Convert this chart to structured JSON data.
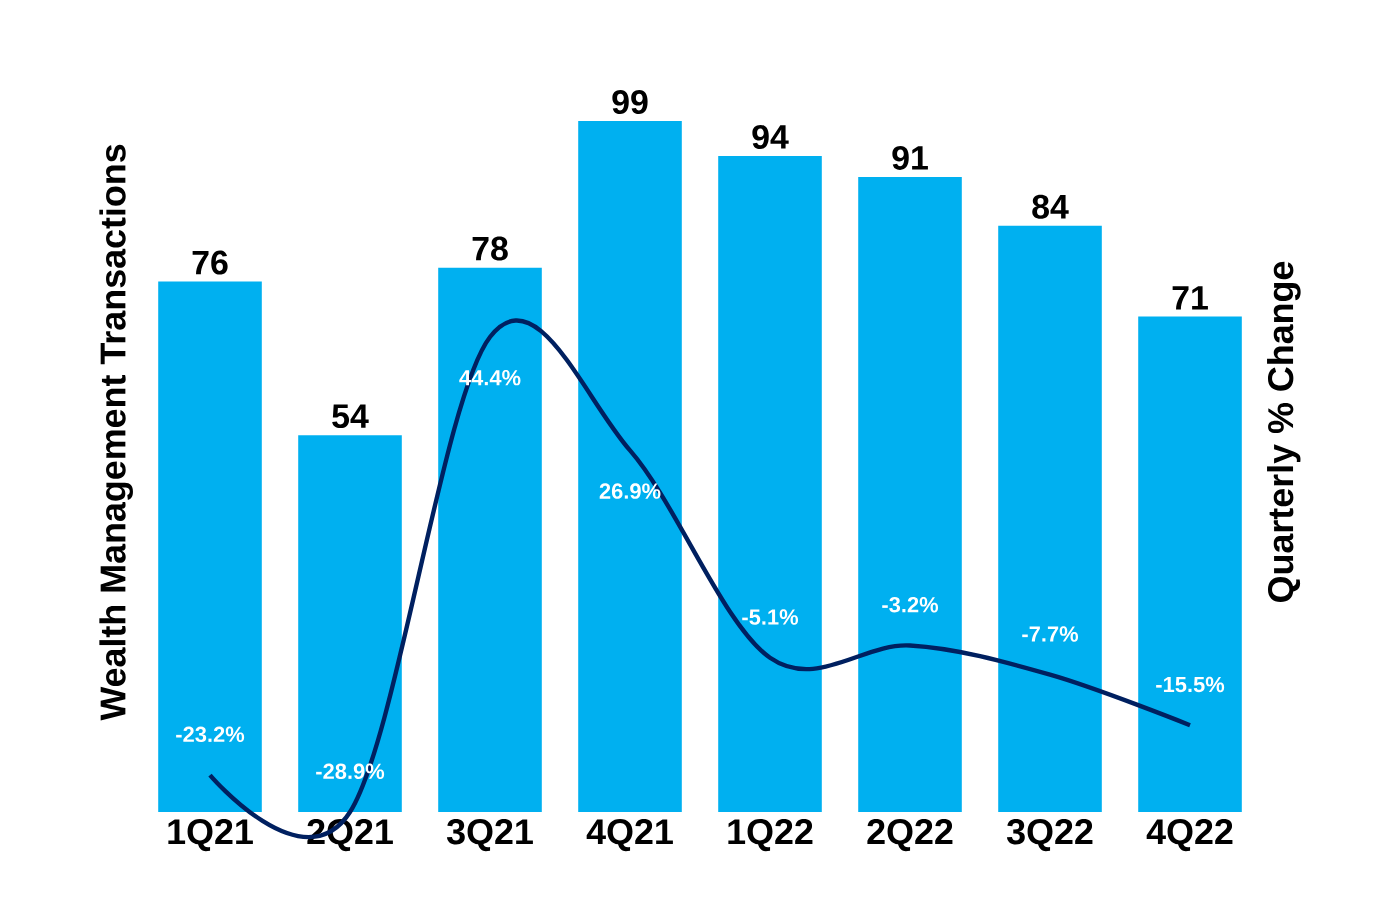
{
  "chart_data": {
    "type": "bar",
    "ylabel": "Wealth Management Transactions",
    "y2label": "Quarterly % Change",
    "categories": [
      "1Q21",
      "2Q21",
      "3Q21",
      "4Q21",
      "1Q22",
      "2Q22",
      "3Q22",
      "4Q22"
    ],
    "series": [
      {
        "color": "#00b0f0",
        "values": [
          76,
          54,
          78,
          99,
          94,
          91,
          84,
          71
        ],
        "value_labels": [
          "76",
          "54",
          "78",
          "99",
          "94",
          "91",
          "84",
          "71"
        ]
      },
      {
        "type": "line",
        "axis": "y2",
        "color": "#002060",
        "values": [
          -23.2,
          -28.9,
          44.4,
          26.9,
          -5.1,
          -3.2,
          -7.7,
          -15.5
        ],
        "value_labels": [
          "-23.2%",
          "-28.9%",
          "44.4%",
          "26.9%",
          "-5.1%",
          "-3.2%",
          "-7.7%",
          "-15.5%"
        ]
      }
    ],
    "tick_labels": "x"
  }
}
